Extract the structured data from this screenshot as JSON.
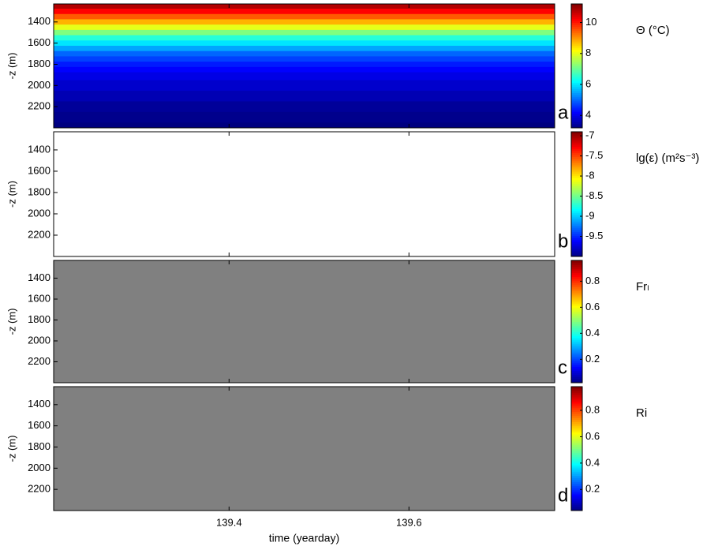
{
  "chart_data": [
    {
      "type": "heatmap",
      "panel_label": "a",
      "ylabel": "-z (m)",
      "ylim": [
        1230,
        2400
      ],
      "y_inverted": true,
      "yticks": [
        1400,
        1600,
        1800,
        2000,
        2200
      ],
      "xlim": [
        139.205,
        139.762
      ],
      "xticks": [
        139.4,
        139.6
      ],
      "colormap": "jet",
      "background": "#ffffff",
      "y": [
        1250,
        1300,
        1350,
        1400,
        1450,
        1500,
        1550,
        1600,
        1650,
        1700,
        1750,
        1800,
        1850,
        1900,
        2000,
        2100,
        2200,
        2300,
        2400
      ],
      "values": [
        10.8,
        10.2,
        9.5,
        8.8,
        8.0,
        7.2,
        6.5,
        6.0,
        5.5,
        5.0,
        4.7,
        4.4,
        4.2,
        4.0,
        3.8,
        3.6,
        3.4,
        3.3,
        3.2
      ],
      "colorbar": {
        "label": "Θ (°C)",
        "clim": [
          3.2,
          11.2
        ],
        "ticks": [
          4,
          6,
          8,
          10
        ]
      }
    },
    {
      "type": "heatmap",
      "panel_label": "b",
      "ylabel": "-z (m)",
      "ylim": [
        1230,
        2400
      ],
      "y_inverted": true,
      "yticks": [
        1400,
        1600,
        1800,
        2000,
        2200
      ],
      "xlim": [
        139.205,
        139.762
      ],
      "xticks": [
        139.4,
        139.6
      ],
      "colormap": "jet",
      "background": "#ffffff",
      "colorbar": {
        "label": "lg(ε) (m²s⁻³)",
        "clim": [
          -10,
          -6.9
        ],
        "ticks": [
          -7,
          -7.5,
          -8,
          -8.5,
          -9,
          -9.5
        ]
      }
    },
    {
      "type": "heatmap",
      "panel_label": "c",
      "ylabel": "-z (m)",
      "ylim": [
        1230,
        2400
      ],
      "y_inverted": true,
      "yticks": [
        1400,
        1600,
        1800,
        2000,
        2200
      ],
      "xlim": [
        139.205,
        139.762
      ],
      "xticks": [
        139.4,
        139.6
      ],
      "colormap": "jet",
      "background": "#808080",
      "colorbar": {
        "label": "Frₗ",
        "clim": [
          0.02,
          0.96
        ],
        "ticks": [
          0.2,
          0.4,
          0.6,
          0.8
        ]
      }
    },
    {
      "type": "heatmap",
      "panel_label": "d",
      "ylabel": "-z (m)",
      "ylim": [
        1230,
        2400
      ],
      "y_inverted": true,
      "yticks": [
        1400,
        1600,
        1800,
        2000,
        2200
      ],
      "xlim": [
        139.205,
        139.762
      ],
      "xticks": [
        139.4,
        139.6
      ],
      "colormap": "jet",
      "background": "#808080",
      "xlabel": "time (yearday)",
      "colorbar": {
        "label": "Ri",
        "clim": [
          0.04,
          0.98
        ],
        "ticks": [
          0.2,
          0.4,
          0.6,
          0.8
        ]
      }
    }
  ]
}
